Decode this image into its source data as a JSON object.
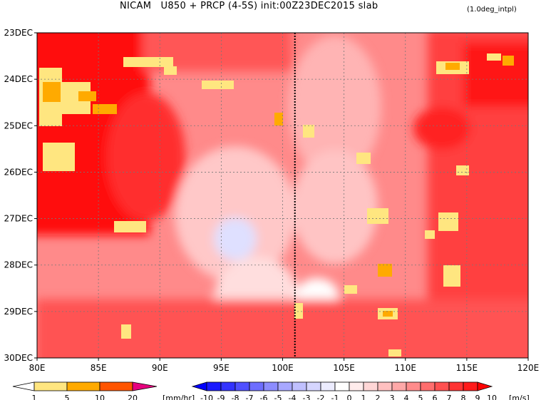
{
  "title": "NICAM   U850 + PRCP (4-5S) init:00Z23DEC2015 slab",
  "note": "(1.0deg_intpl)",
  "chart_data": {
    "type": "heatmap",
    "title": "NICAM   U850 + PRCP (4-5S) init:00Z23DEC2015 slab",
    "x_ticks": [
      "80E",
      "85E",
      "90E",
      "95E",
      "100E",
      "105E",
      "110E",
      "115E",
      "120E"
    ],
    "x_values": [
      80,
      85,
      90,
      95,
      100,
      105,
      110,
      115,
      120
    ],
    "xlim": [
      80,
      120
    ],
    "y_ticks": [
      "23DEC",
      "24DEC",
      "25DEC",
      "26DEC",
      "27DEC",
      "28DEC",
      "29DEC",
      "30DEC"
    ],
    "ylim": [
      "23DEC",
      "30DEC"
    ],
    "y_axis_direction": "time increasing downward",
    "grid": "dashed",
    "reference_line": {
      "x": 101,
      "style": "dotted"
    },
    "shaded_field": {
      "name": "U850",
      "unit": "[m/s]",
      "levels": [
        "-10",
        "-9",
        "-8",
        "-7",
        "-6",
        "-5",
        "-4",
        "-3",
        "-2",
        "-1",
        "0",
        "1",
        "2",
        "3",
        "4",
        "5",
        "6",
        "7",
        "8",
        "9",
        "10"
      ],
      "colors": [
        "#0000ff",
        "#1a1aff",
        "#3333ff",
        "#5050ff",
        "#6e6eff",
        "#8c8cff",
        "#a8a8ff",
        "#c0c0ff",
        "#d6d6ff",
        "#ececff",
        "#ffffff",
        "#ffecec",
        "#ffd6d6",
        "#ffc0c0",
        "#ffa8a8",
        "#ff8c8c",
        "#ff6e6e",
        "#ff5050",
        "#ff3333",
        "#ff1a1a",
        "#ff0000"
      ],
      "regions": [
        {
          "area": "80E-90E, 24DEC-28DEC",
          "level": "9 to 10"
        },
        {
          "area": "90E-100E, 25DEC-27DEC",
          "level": "5 to 7"
        },
        {
          "area": "95E-99E, 27DEC-28DEC",
          "level": "-2 to 1"
        },
        {
          "area": "100E-105E, 28DEC-29DEC",
          "level": "0 to 2"
        },
        {
          "area": "103E-110E, 24DEC-26DEC",
          "level": "2 to 4"
        },
        {
          "area": "110E-120E, 23DEC-30DEC",
          "level": "6 to 10"
        },
        {
          "area": "80E-120E, 29DEC-30DEC",
          "level": "6 to 9"
        }
      ]
    },
    "contour_field": {
      "name": "PRCP",
      "unit": "[mm/hr]",
      "levels": [
        "1",
        "5",
        "10",
        "20"
      ],
      "colors": [
        "#ffe680",
        "#ffaa00",
        "#ff5500",
        "#e6007e"
      ],
      "regions": [
        {
          "area": "80E-85E, 24DEC-26DEC",
          "level": "1 to 10"
        },
        {
          "area": "86E-91E, 23.5DEC-24DEC",
          "level": "1 to 5"
        },
        {
          "area": "92E-96E, 24.2DEC-24.6DEC",
          "level": "1 to 5"
        },
        {
          "area": "113E-118E, 23.7DEC-24.3DEC",
          "level": "1 to 10"
        },
        {
          "area": "107E-110E, 28.8DEC-29.2DEC",
          "level": "1 to 10"
        },
        {
          "area": "113E-116E, 27.2DEC-28.5DEC",
          "level": "1 to 10"
        },
        {
          "area": "108E-110E, 27DEC",
          "level": "1 to 5"
        }
      ]
    }
  }
}
